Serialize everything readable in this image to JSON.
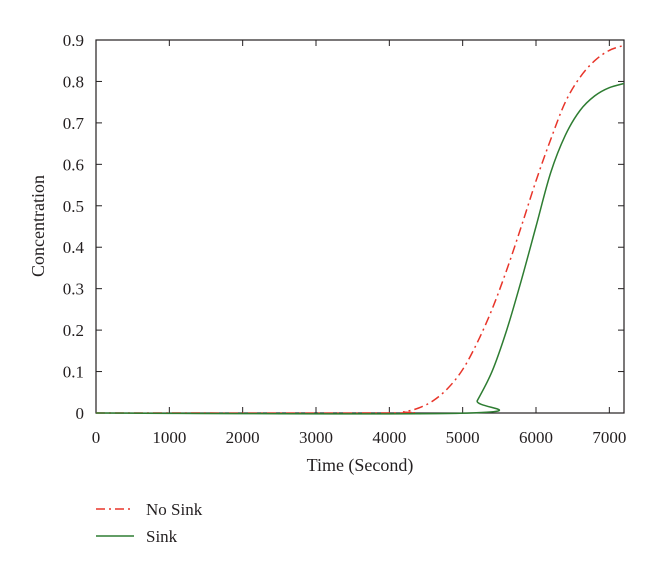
{
  "chart_data": {
    "type": "line",
    "title": "",
    "xlabel": "Time (Second)",
    "ylabel": "Concentration",
    "xlim": [
      0,
      7200
    ],
    "ylim": [
      0,
      0.9
    ],
    "xticks": [
      0,
      1000,
      2000,
      3000,
      4000,
      5000,
      6000,
      7000
    ],
    "xtick_labels": [
      "0",
      "1000",
      "2000",
      "3000",
      "4000",
      "5000",
      "6000",
      "7000"
    ],
    "yticks": [
      0,
      0.1,
      0.2,
      0.3,
      0.4,
      0.5,
      0.6,
      0.7,
      0.8,
      0.9
    ],
    "ytick_labels": [
      "0",
      "0.1",
      "0.2",
      "0.3",
      "0.4",
      "0.5",
      "0.6",
      "0.7",
      "0.8",
      "0.9"
    ],
    "grid": false,
    "legend_position": "below-left",
    "series": [
      {
        "name": "No Sink",
        "color": "#e8352a",
        "style": "dash-dot",
        "x": [
          0,
          4000,
          4200,
          4400,
          4600,
          4800,
          5000,
          5200,
          5400,
          5600,
          5800,
          6000,
          6200,
          6400,
          6600,
          6800,
          7000,
          7200
        ],
        "y": [
          0,
          0,
          0.003,
          0.012,
          0.03,
          0.06,
          0.105,
          0.17,
          0.25,
          0.345,
          0.45,
          0.56,
          0.66,
          0.75,
          0.81,
          0.85,
          0.875,
          0.887
        ]
      },
      {
        "name": "Sink",
        "color": "#2e7d32",
        "style": "solid",
        "x": [
          0,
          5100,
          5200,
          5400,
          5600,
          5800,
          6000,
          6200,
          6400,
          6600,
          6800,
          7000,
          7200
        ],
        "y": [
          0,
          0,
          0.03,
          0.1,
          0.2,
          0.32,
          0.45,
          0.58,
          0.67,
          0.73,
          0.765,
          0.785,
          0.795
        ]
      }
    ]
  }
}
